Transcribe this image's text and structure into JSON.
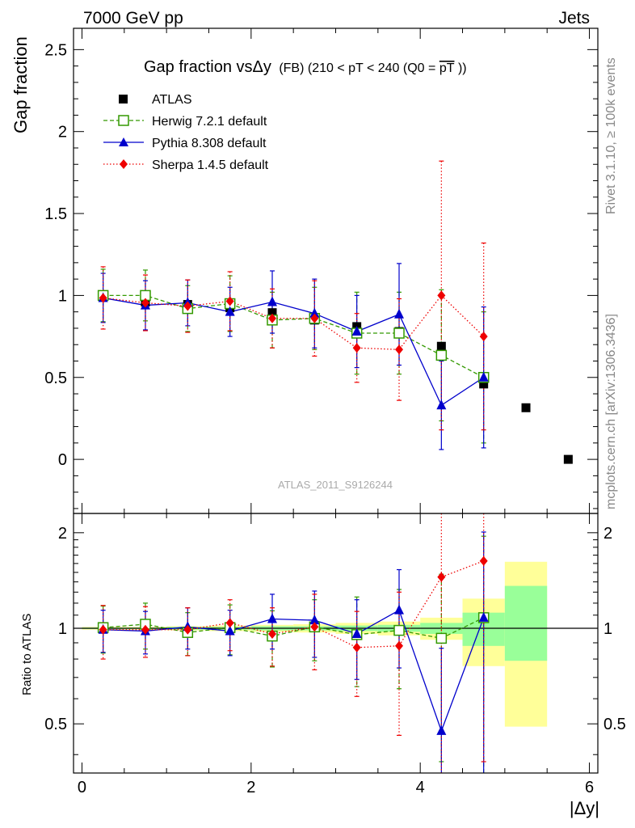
{
  "header": {
    "energy_label": "7000 GeV pp",
    "process_label": "Jets"
  },
  "side_labels": {
    "rivet": "Rivet 3.1.10, ≥ 100k events",
    "mcplots": "mcplots.cern.ch [arXiv:1306.3436]"
  },
  "colors": {
    "atlas": "#000000",
    "herwig": "#339900",
    "pythia": "#0000cc",
    "sherpa": "#ee0000",
    "band_outer": "#ffff99",
    "band_inner": "#99ff99"
  },
  "chart_data": [
    {
      "type": "scatter",
      "panel": "main",
      "title": "Gap fraction vsΔy",
      "title_suffix": "(FB) (210 < pT < 240 (Q0 =",
      "title_q0": "pT",
      "title_close": "))",
      "ylabel": "Gap fraction",
      "xlabel": "|Δy|",
      "xlim": [
        -0.1,
        6.1
      ],
      "ylim": [
        -0.33,
        2.63
      ],
      "yticks": [
        0,
        0.5,
        1,
        1.5,
        2,
        2.5
      ],
      "ytick_labels": [
        "0",
        "0.5",
        "1",
        "1.5",
        "2",
        "2.5"
      ],
      "watermark": "ATLAS_2011_S9126244",
      "legend_position": "top-left",
      "x": [
        0.25,
        0.75,
        1.25,
        1.75,
        2.25,
        2.75,
        3.25,
        3.75,
        4.25,
        4.75,
        5.25,
        5.75
      ],
      "atlas": {
        "name": "ATLAS",
        "x": [
          0.25,
          0.75,
          1.25,
          1.75,
          2.25,
          2.75,
          3.25,
          3.75,
          4.25,
          4.75,
          5.25,
          5.75
        ],
        "y": [
          1.0,
          0.96,
          0.945,
          0.925,
          0.895,
          0.85,
          0.81,
          0.78,
          0.69,
          0.46,
          0.315,
          0.0
        ]
      },
      "series": [
        {
          "name": "Herwig 7.2.1 default",
          "key": "herwig",
          "x": [
            0.25,
            0.75,
            1.25,
            1.75,
            2.25,
            2.75,
            3.25,
            3.75,
            4.25,
            4.75
          ],
          "y": [
            1.0,
            1.0,
            0.92,
            0.95,
            0.85,
            0.86,
            0.77,
            0.77,
            0.635,
            0.5
          ],
          "yerr": [
            0.16,
            0.155,
            0.14,
            0.17,
            0.17,
            0.19,
            0.25,
            0.25,
            0.4,
            0.4
          ]
        },
        {
          "name": "Pythia 8.308 default",
          "key": "pythia",
          "x": [
            0.25,
            0.75,
            1.25,
            1.75,
            2.25,
            2.75,
            3.25,
            3.75,
            4.25,
            4.75
          ],
          "y": [
            0.985,
            0.94,
            0.955,
            0.9,
            0.96,
            0.89,
            0.78,
            0.885,
            0.33,
            0.5
          ],
          "yerr": [
            0.15,
            0.15,
            0.14,
            0.15,
            0.19,
            0.21,
            0.22,
            0.31,
            0.27,
            0.43
          ]
        },
        {
          "name": "Sherpa 1.4.5 default",
          "key": "sherpa",
          "x": [
            0.25,
            0.75,
            1.25,
            1.75,
            2.25,
            2.75,
            3.25,
            3.75,
            4.25,
            4.75
          ],
          "y": [
            0.985,
            0.955,
            0.935,
            0.965,
            0.86,
            0.86,
            0.68,
            0.67,
            1.0,
            0.75
          ],
          "yerr": [
            0.19,
            0.17,
            0.16,
            0.18,
            0.18,
            0.23,
            0.21,
            0.31,
            0.82,
            0.57
          ]
        }
      ]
    },
    {
      "type": "scatter",
      "panel": "ratio",
      "ylabel": "Ratio to ATLAS",
      "xlabel": "|Δy|",
      "xlim": [
        -0.1,
        6.1
      ],
      "ylim": [
        0.35,
        2.3
      ],
      "yticks": [
        0.5,
        1,
        2
      ],
      "ytick_labels": [
        "0.5",
        "1",
        "2"
      ],
      "xticks": [
        0,
        2,
        4,
        6
      ],
      "xtick_labels": [
        "0",
        "2",
        "4",
        "6"
      ],
      "bands": [
        {
          "x0": 0.0,
          "x1": 0.5,
          "outer": [
            0.99,
            1.01
          ],
          "inner": [
            0.995,
            1.005
          ]
        },
        {
          "x0": 0.5,
          "x1": 1.0,
          "outer": [
            0.99,
            1.01
          ],
          "inner": [
            0.995,
            1.005
          ]
        },
        {
          "x0": 1.0,
          "x1": 1.5,
          "outer": [
            0.985,
            1.015
          ],
          "inner": [
            0.99,
            1.01
          ]
        },
        {
          "x0": 1.5,
          "x1": 2.0,
          "outer": [
            0.98,
            1.02
          ],
          "inner": [
            0.99,
            1.01
          ]
        },
        {
          "x0": 2.0,
          "x1": 2.5,
          "outer": [
            0.975,
            1.025
          ],
          "inner": [
            0.985,
            1.015
          ]
        },
        {
          "x0": 2.5,
          "x1": 3.0,
          "outer": [
            0.97,
            1.03
          ],
          "inner": [
            0.985,
            1.015
          ]
        },
        {
          "x0": 3.0,
          "x1": 3.5,
          "outer": [
            0.96,
            1.04
          ],
          "inner": [
            0.98,
            1.02
          ]
        },
        {
          "x0": 3.5,
          "x1": 4.0,
          "outer": [
            0.95,
            1.05
          ],
          "inner": [
            0.975,
            1.025
          ]
        },
        {
          "x0": 4.0,
          "x1": 4.5,
          "outer": [
            0.92,
            1.08
          ],
          "inner": [
            0.96,
            1.04
          ]
        },
        {
          "x0": 4.5,
          "x1": 5.0,
          "outer": [
            0.76,
            1.24
          ],
          "inner": [
            0.88,
            1.12
          ]
        },
        {
          "x0": 5.0,
          "x1": 5.5,
          "outer": [
            0.49,
            1.62
          ],
          "inner": [
            0.79,
            1.36
          ]
        }
      ],
      "series": [
        {
          "name": "Herwig 7.2.1 default",
          "key": "herwig",
          "x": [
            0.25,
            0.75,
            1.25,
            1.75,
            2.25,
            2.75,
            3.25,
            3.75,
            4.25,
            4.75
          ],
          "y": [
            1.005,
            1.03,
            0.97,
            1.005,
            0.945,
            1.01,
            0.955,
            0.985,
            0.93,
            1.08
          ],
          "yerr": [
            0.17,
            0.17,
            0.15,
            0.18,
            0.19,
            0.22,
            0.3,
            0.34,
            0.55,
            0.87
          ]
        },
        {
          "name": "Pythia 8.308 default",
          "key": "pythia",
          "x": [
            0.25,
            0.75,
            1.25,
            1.75,
            2.25,
            2.75,
            3.25,
            3.75,
            4.25,
            4.75
          ],
          "y": [
            0.99,
            0.98,
            1.01,
            0.98,
            1.07,
            1.06,
            0.96,
            1.14,
            0.475,
            1.08
          ],
          "yerr": [
            0.15,
            0.15,
            0.15,
            0.16,
            0.21,
            0.25,
            0.27,
            0.39,
            0.39,
            0.93
          ]
        },
        {
          "name": "Sherpa 1.4.5 default",
          "key": "sherpa",
          "x": [
            0.25,
            0.75,
            1.25,
            1.75,
            2.25,
            2.75,
            3.25,
            3.75,
            4.25,
            4.75
          ],
          "y": [
            0.99,
            0.99,
            0.99,
            1.04,
            0.96,
            1.01,
            0.87,
            0.88,
            1.45,
            1.63
          ],
          "yerr": [
            0.19,
            0.18,
            0.17,
            0.19,
            0.2,
            0.27,
            0.26,
            0.42,
            1.2,
            1.25
          ]
        }
      ]
    }
  ]
}
